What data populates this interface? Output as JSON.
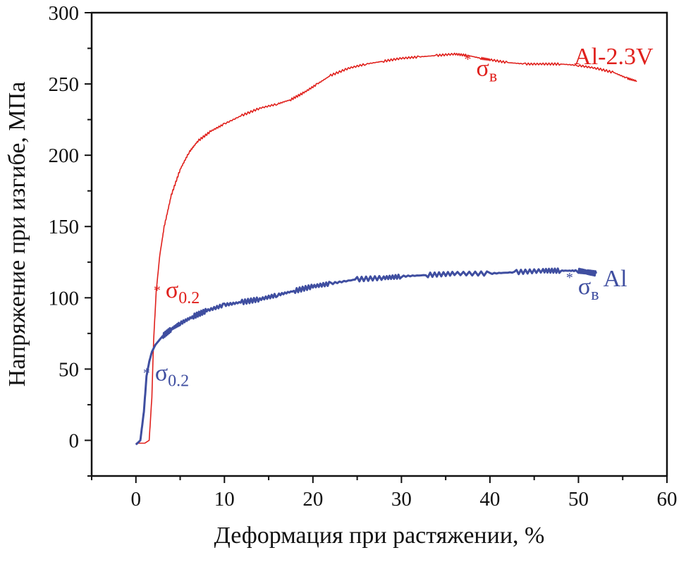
{
  "chart_data": {
    "type": "line",
    "title": "",
    "xlabel": "Деформация при растяжении, %",
    "ylabel": "Напряжение при изгибе, МПа",
    "xlim": [
      -5,
      60
    ],
    "ylim": [
      -25,
      300
    ],
    "xticks": [
      0,
      10,
      20,
      30,
      40,
      50,
      60
    ],
    "yticks": [
      0,
      50,
      100,
      150,
      200,
      250,
      300
    ],
    "grid": false,
    "legend": "inline labels",
    "series": [
      {
        "name": "Al-2.3V",
        "color": "#e0201c",
        "x": [
          0,
          1.0,
          1.5,
          1.8,
          2.0,
          2.3,
          2.7,
          3.2,
          4.0,
          5.0,
          6.0,
          7.0,
          8.5,
          10,
          12,
          14,
          16,
          17.5,
          19,
          20.5,
          22,
          24,
          26,
          28,
          30,
          32,
          34,
          36,
          37.5,
          39,
          40,
          42,
          44,
          46,
          48,
          50,
          52,
          54,
          55.5,
          56.6
        ],
        "y": [
          -2,
          -2,
          0,
          30,
          70,
          105,
          130,
          150,
          172,
          190,
          202,
          210,
          217,
          222,
          228,
          233,
          236,
          239,
          244,
          250,
          256,
          261,
          264,
          266,
          268,
          269,
          270,
          271,
          270,
          268,
          267,
          265,
          264,
          264,
          264,
          263,
          261,
          258,
          254,
          252
        ],
        "annotations": [
          {
            "label": "σ",
            "sub": "0.2",
            "x": 2.4,
            "y": 106
          },
          {
            "label": "σ",
            "sub": "в",
            "x": 37.5,
            "y": 268
          }
        ],
        "label_text": "Al-2.3V"
      },
      {
        "name": "Al",
        "color": "#3f4ea0",
        "x": [
          0,
          0.5,
          0.9,
          1.2,
          1.5,
          1.8,
          2.2,
          3.0,
          4.0,
          5.0,
          6.5,
          8.0,
          10,
          12,
          14,
          16,
          18,
          20,
          22,
          25,
          28,
          30,
          33,
          36,
          40,
          43,
          46,
          48,
          50,
          51,
          52
        ],
        "y": [
          -3,
          0,
          20,
          45,
          55,
          62,
          67,
          73,
          78,
          82,
          87,
          91,
          95,
          97,
          99,
          102,
          105,
          108,
          110,
          113,
          114,
          115,
          116,
          117,
          117,
          118,
          119,
          119,
          119,
          118,
          117
        ],
        "annotations": [
          {
            "label": "σ",
            "sub": "0.2",
            "x": 1.2,
            "y": 48
          },
          {
            "label": "σ",
            "sub": "в",
            "x": 49,
            "y": 115
          }
        ],
        "label_text": "Al"
      }
    ]
  }
}
